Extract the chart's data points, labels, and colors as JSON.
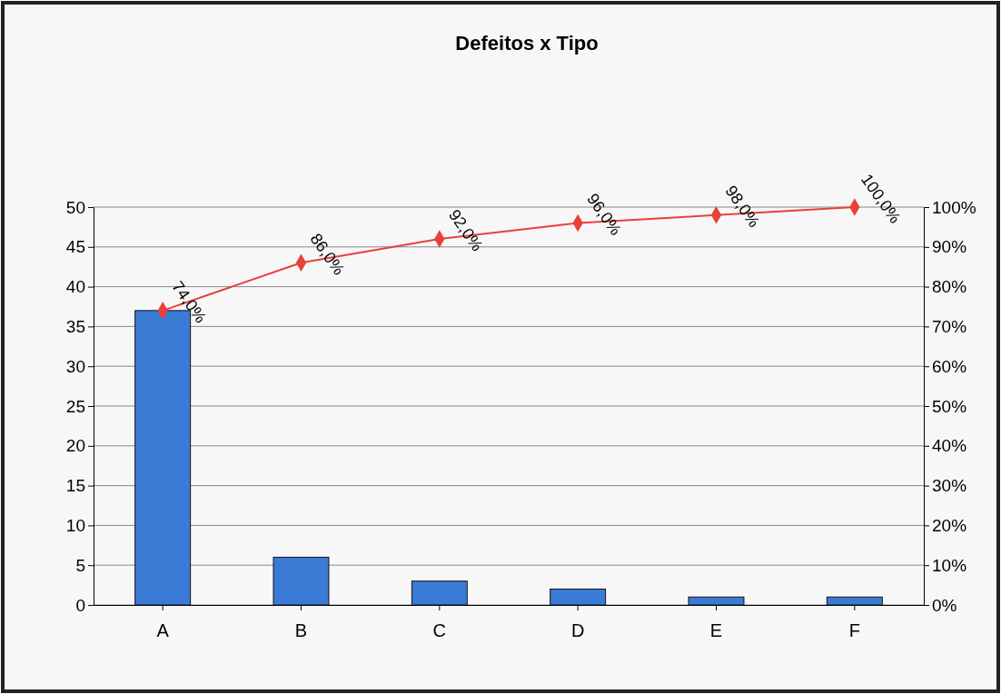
{
  "chart_data": {
    "type": "bar",
    "title": "Defeitos x Tipo",
    "categories": [
      "A",
      "B",
      "C",
      "D",
      "E",
      "F"
    ],
    "series": [
      {
        "color": "#3a7bd5",
        "values": [
          37,
          6,
          3,
          2,
          1,
          1
        ]
      },
      {
        "type": "line",
        "axis": "y2",
        "color": "#e8403a",
        "marker": "diamond",
        "values": [
          74,
          86,
          92,
          96,
          98,
          100
        ],
        "value_labels": [
          "74,0%",
          "86,0%",
          "92,0%",
          "96,0%",
          "98,0%",
          "100,0%"
        ]
      }
    ],
    "ylim": [
      0,
      50
    ],
    "yticks": [
      0,
      5,
      10,
      15,
      20,
      25,
      30,
      35,
      40,
      45,
      50
    ],
    "y2lim": [
      0,
      100
    ],
    "y2ticks": [
      {
        "value": 0,
        "label": "0%"
      },
      {
        "value": 10,
        "label": "10%"
      },
      {
        "value": 20,
        "label": "20%"
      },
      {
        "value": 30,
        "label": "30%"
      },
      {
        "value": 40,
        "label": "40%"
      },
      {
        "value": 50,
        "label": "50%"
      },
      {
        "value": 60,
        "label": "60%"
      },
      {
        "value": 70,
        "label": "70%"
      },
      {
        "value": 80,
        "label": "80%"
      },
      {
        "value": 90,
        "label": "90%"
      },
      {
        "value": 100,
        "label": "100%"
      }
    ],
    "grid": "y",
    "legend": false
  }
}
